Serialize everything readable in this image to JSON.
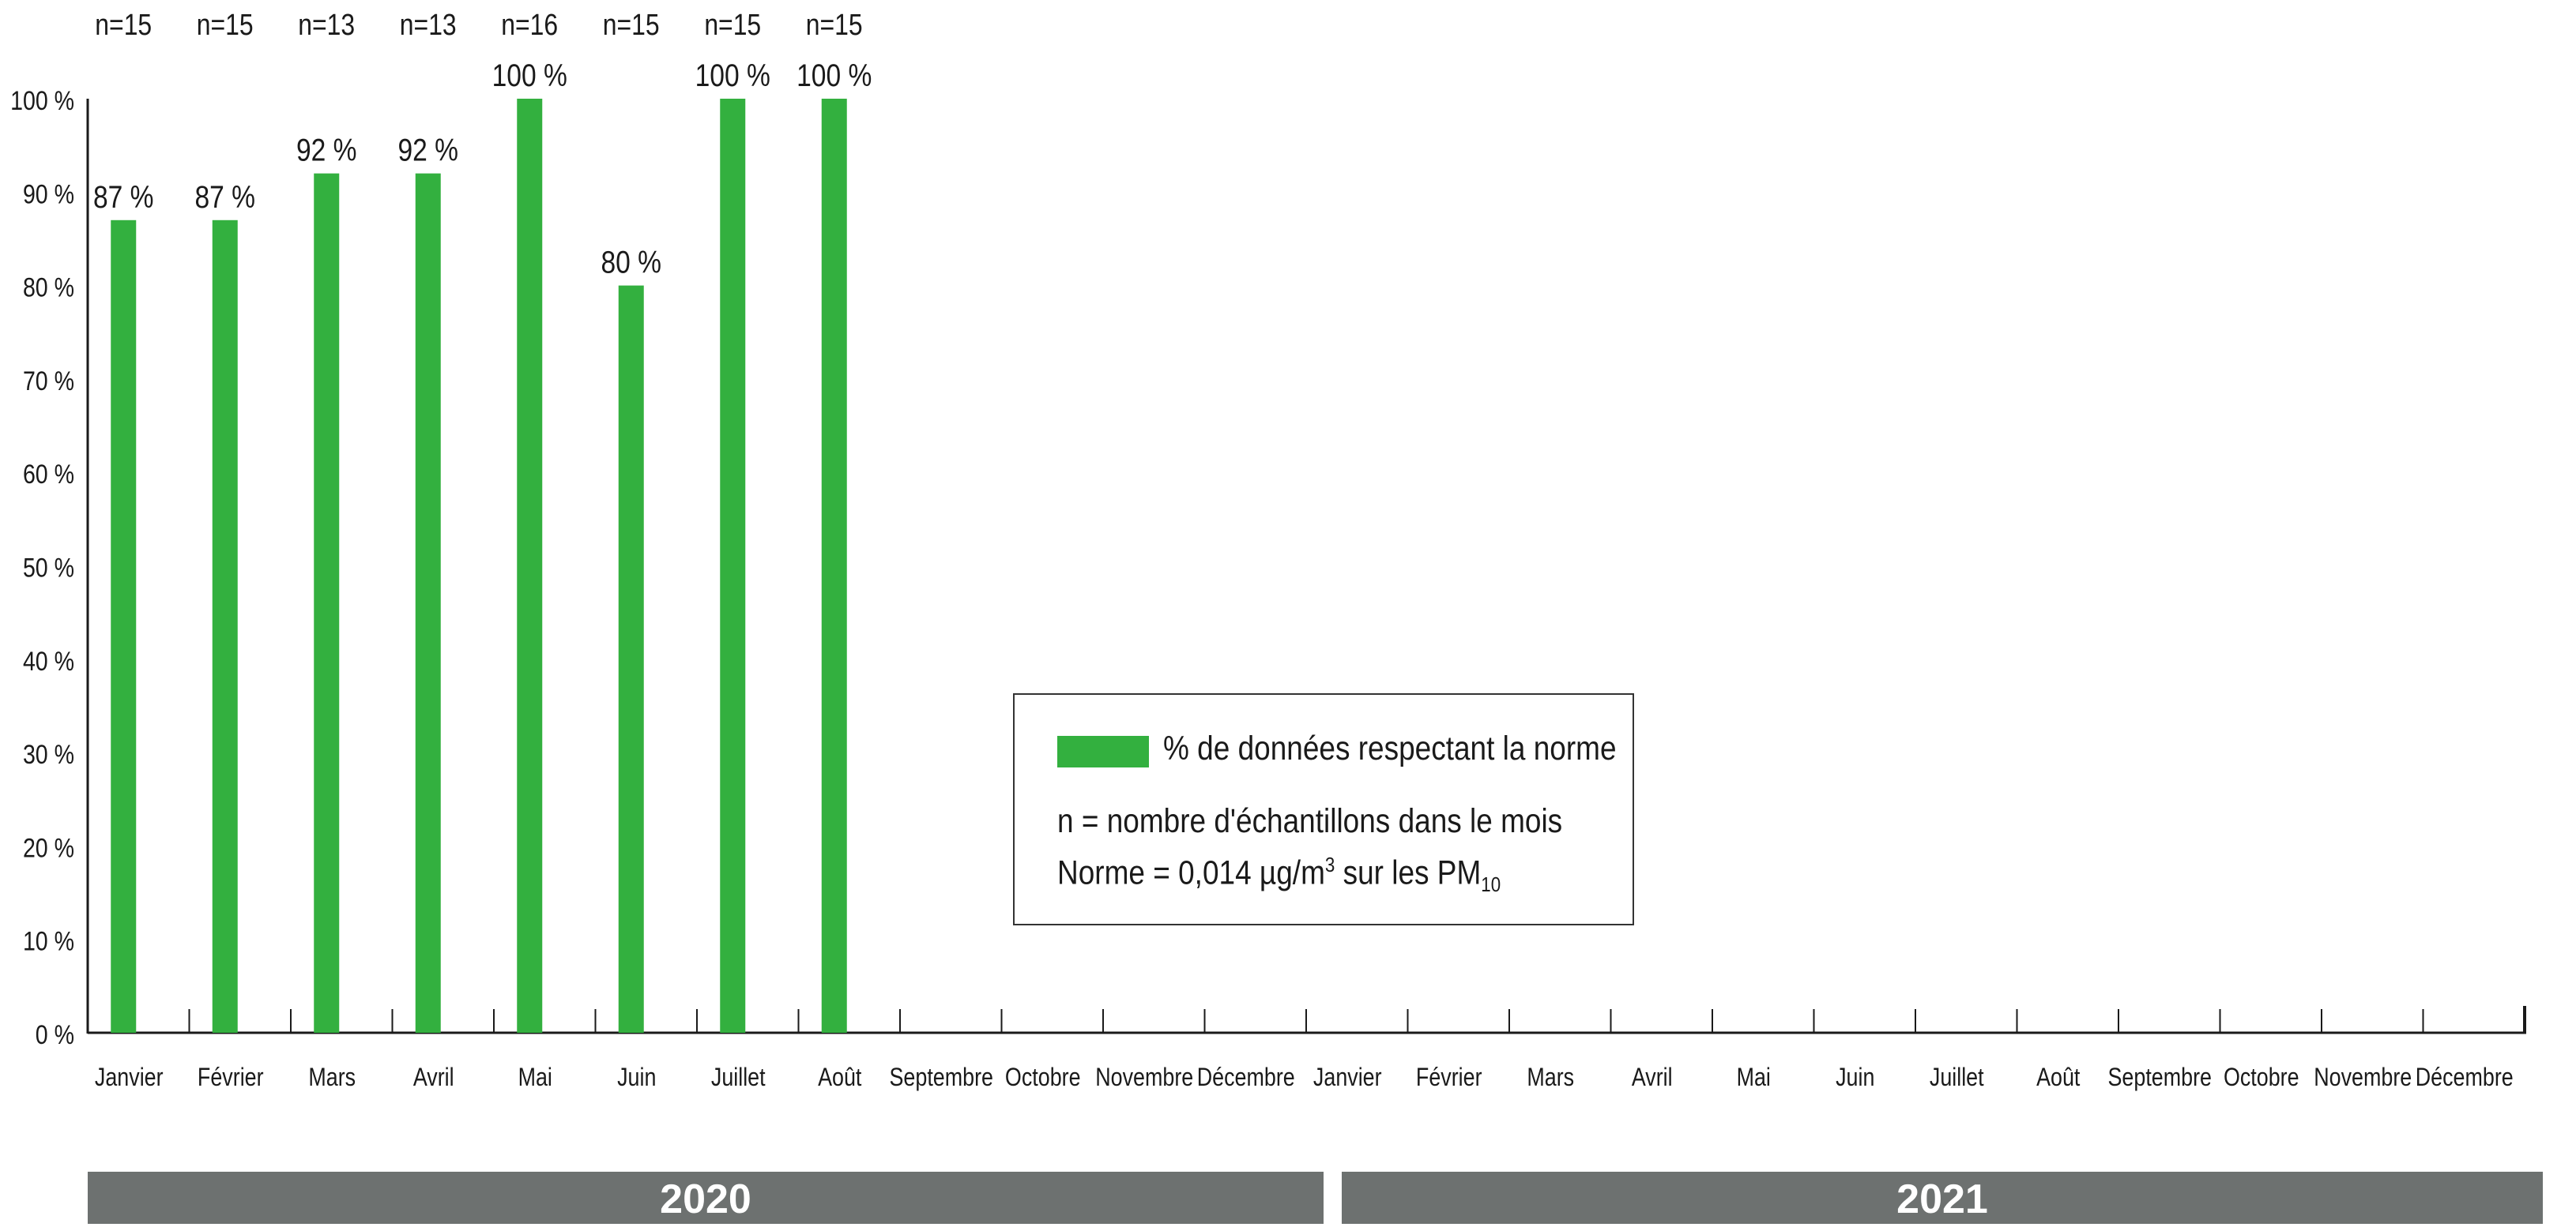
{
  "chart_data": {
    "type": "bar",
    "categories": [
      "Janvier",
      "Février",
      "Mars",
      "Avril",
      "Mai",
      "Juin",
      "Juillet",
      "Août",
      "Septembre",
      "Octobre",
      "Novembre",
      "Décembre",
      "Janvier",
      "Février",
      "Mars",
      "Avril",
      "Mai",
      "Juin",
      "Juillet",
      "Août",
      "Septembre",
      "Octobre",
      "Novembre",
      "Décembre"
    ],
    "series": [
      {
        "name": "% de données respectant la norme",
        "values": [
          87,
          87,
          92,
          92,
          100,
          80,
          100,
          100,
          null,
          null,
          null,
          null,
          null,
          null,
          null,
          null,
          null,
          null,
          null,
          null,
          null,
          null,
          null,
          null
        ]
      }
    ],
    "value_labels": [
      "87 %",
      "87 %",
      "92 %",
      "92 %",
      "100 %",
      "80 %",
      "100 %",
      "100 %"
    ],
    "sample_counts": [
      "n=15",
      "n=15",
      "n=13",
      "n=13",
      "n=16",
      "n=15",
      "n=15",
      "n=15"
    ],
    "y_ticks": [
      "0 %",
      "10 %",
      "20 %",
      "30 %",
      "40 %",
      "50 %",
      "60 %",
      "70 %",
      "80 %",
      "90 %",
      "100 %"
    ],
    "ylim": [
      0,
      100
    ],
    "years": [
      "2020",
      "2021"
    ],
    "grid": false,
    "legend_position": "center",
    "colors": {
      "bar": "#33b03f",
      "axis": "#1a1a1a",
      "year_band": "#6d7170"
    }
  },
  "legend": {
    "series_label": "% de données respectant la norme",
    "n_definition": "n = nombre d'échantillons dans le mois",
    "norm_prefix": "Norme = 0,014 µg/m",
    "norm_sup": "3",
    "norm_middle": " sur les PM",
    "norm_sub": "10"
  }
}
